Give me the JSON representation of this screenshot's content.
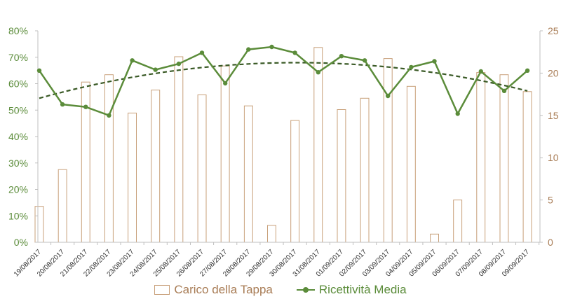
{
  "chart_data": {
    "type": "bar+line",
    "categories": [
      "19/08/2017",
      "20/08/2017",
      "21/08/2017",
      "22/08/2017",
      "23/08/2017",
      "24/08/2017",
      "25/08/2017",
      "26/08/2017",
      "27/08/2017",
      "28/08/2017",
      "29/08/2017",
      "30/08/2017",
      "31/08/2017",
      "01/09/2017",
      "02/09/2017",
      "03/09/2017",
      "04/09/2017",
      "05/09/2017",
      "06/09/2017",
      "07/09/2017",
      "08/09/2017",
      "09/09/2017"
    ],
    "series": [
      {
        "name": "Carico della Tappa",
        "kind": "bar",
        "axis": "left",
        "unit": "fraction",
        "color": "#c8a07a",
        "values": [
          0.136,
          0.275,
          0.606,
          0.634,
          0.489,
          0.576,
          0.702,
          0.558,
          0.667,
          0.516,
          0.064,
          0.461,
          0.737,
          0.502,
          0.545,
          0.695,
          0.59,
          0.031,
          0.16,
          0.642,
          0.634,
          0.57
        ]
      },
      {
        "name": "Ricettività Media",
        "kind": "line",
        "axis": "right",
        "color": "#5b8c3a",
        "values": [
          20.3,
          16.3,
          16.0,
          15.0,
          21.5,
          20.4,
          21.1,
          22.4,
          18.8,
          22.8,
          23.1,
          22.4,
          20.1,
          22.0,
          21.5,
          17.3,
          20.7,
          21.4,
          15.2,
          20.2,
          17.9,
          20.3
        ]
      }
    ],
    "trendline": {
      "series": "Ricettività Media",
      "type": "polynomial",
      "style": "dashed",
      "color": "#3a5a26"
    },
    "yaxis_left": {
      "min": 0,
      "max": 0.8,
      "ticks": [
        0,
        0.1,
        0.2,
        0.3,
        0.4,
        0.5,
        0.6,
        0.7,
        0.8
      ],
      "tick_labels": [
        "0%",
        "10%",
        "20%",
        "30%",
        "40%",
        "50%",
        "60%",
        "70%",
        "80%"
      ],
      "color": "#5b8c3a"
    },
    "yaxis_right": {
      "min": 0,
      "max": 25,
      "ticks": [
        0,
        5,
        10,
        15,
        20,
        25
      ],
      "tick_labels": [
        "0",
        "5",
        "10",
        "15",
        "20",
        "25"
      ],
      "color": "#a87c55"
    },
    "grid": false,
    "legend_position": "bottom",
    "title": "",
    "xlabel": "",
    "ylabel": ""
  },
  "legend": {
    "bar_label": "Carico della Tappa",
    "line_label": "Ricettività Media",
    "bar_color": "#a87c55",
    "line_color": "#5b8c3a"
  }
}
